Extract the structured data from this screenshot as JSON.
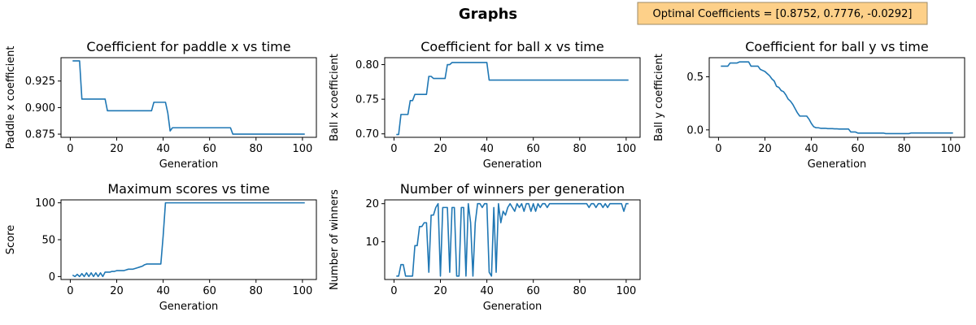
{
  "figure": {
    "title": "Graphs",
    "annotation": "Optimal Coefficients = [0.8752, 0.7776, -0.0292]",
    "annotation_bg": "#fdd089",
    "annotation_border": "#9c8a67",
    "line_color": "#1f77b4"
  },
  "chart_data": [
    {
      "type": "line",
      "title": "Coefficient for paddle x vs time",
      "xlabel": "Generation",
      "ylabel": "Paddle x coefficient",
      "xlim": [
        -4,
        106
      ],
      "ylim": [
        0.872,
        0.947
      ],
      "xticks": [
        0,
        20,
        40,
        60,
        80,
        100
      ],
      "xtick_labels": [
        "0",
        "20",
        "40",
        "60",
        "80",
        "100"
      ],
      "yticks": [
        0.875,
        0.9,
        0.925
      ],
      "ytick_labels": [
        "0.875",
        "0.900",
        "0.925"
      ],
      "x": [
        1,
        2,
        3,
        4,
        5,
        6,
        7,
        8,
        9,
        10,
        11,
        12,
        13,
        14,
        15,
        16,
        17,
        18,
        19,
        20,
        21,
        22,
        23,
        24,
        25,
        26,
        27,
        28,
        29,
        30,
        31,
        32,
        33,
        34,
        35,
        36,
        37,
        38,
        39,
        40,
        41,
        42,
        43,
        44,
        45,
        46,
        47,
        48,
        49,
        50,
        51,
        52,
        53,
        54,
        55,
        56,
        57,
        58,
        59,
        60,
        61,
        62,
        63,
        64,
        65,
        66,
        67,
        68,
        69,
        70,
        71,
        72,
        73,
        74,
        75,
        76,
        77,
        78,
        79,
        80,
        81,
        82,
        83,
        84,
        85,
        86,
        87,
        88,
        89,
        90,
        91,
        92,
        93,
        94,
        95,
        96,
        97,
        98,
        99,
        100,
        101
      ],
      "values": [
        0.944,
        0.944,
        0.944,
        0.944,
        0.908,
        0.908,
        0.908,
        0.908,
        0.908,
        0.908,
        0.908,
        0.908,
        0.908,
        0.908,
        0.908,
        0.897,
        0.897,
        0.897,
        0.897,
        0.897,
        0.897,
        0.897,
        0.897,
        0.897,
        0.897,
        0.897,
        0.897,
        0.897,
        0.897,
        0.897,
        0.897,
        0.897,
        0.897,
        0.897,
        0.897,
        0.905,
        0.905,
        0.905,
        0.905,
        0.905,
        0.905,
        0.895,
        0.878,
        0.881,
        0.881,
        0.881,
        0.881,
        0.881,
        0.881,
        0.881,
        0.881,
        0.881,
        0.881,
        0.881,
        0.881,
        0.881,
        0.881,
        0.881,
        0.881,
        0.881,
        0.881,
        0.881,
        0.881,
        0.881,
        0.881,
        0.881,
        0.881,
        0.881,
        0.881,
        0.875,
        0.875,
        0.875,
        0.875,
        0.875,
        0.875,
        0.875,
        0.875,
        0.875,
        0.875,
        0.875,
        0.875,
        0.875,
        0.875,
        0.875,
        0.875,
        0.875,
        0.875,
        0.875,
        0.875,
        0.875,
        0.875,
        0.875,
        0.875,
        0.875,
        0.875,
        0.875,
        0.875,
        0.875,
        0.875,
        0.875,
        0.875
      ]
    },
    {
      "type": "line",
      "title": "Coefficient for ball x vs time",
      "xlabel": "Generation",
      "ylabel": "Ball x coefficient",
      "xlim": [
        -4,
        106
      ],
      "ylim": [
        0.695,
        0.81
      ],
      "xticks": [
        0,
        20,
        40,
        60,
        80,
        100
      ],
      "xtick_labels": [
        "0",
        "20",
        "40",
        "60",
        "80",
        "100"
      ],
      "yticks": [
        0.7,
        0.75,
        0.8
      ],
      "ytick_labels": [
        "0.70",
        "0.75",
        "0.80"
      ],
      "x": [
        1,
        2,
        3,
        4,
        5,
        6,
        7,
        8,
        9,
        10,
        11,
        12,
        13,
        14,
        15,
        16,
        17,
        18,
        19,
        20,
        21,
        22,
        23,
        24,
        25,
        26,
        27,
        28,
        29,
        30,
        31,
        32,
        33,
        34,
        35,
        36,
        37,
        38,
        39,
        40,
        41,
        42,
        43,
        44,
        45,
        46,
        47,
        48,
        49,
        50,
        51,
        52,
        53,
        54,
        55,
        56,
        57,
        58,
        59,
        60,
        61,
        62,
        63,
        64,
        65,
        66,
        67,
        68,
        69,
        70,
        71,
        72,
        73,
        74,
        75,
        76,
        77,
        78,
        79,
        80,
        81,
        82,
        83,
        84,
        85,
        86,
        87,
        88,
        89,
        90,
        91,
        92,
        93,
        94,
        95,
        96,
        97,
        98,
        99,
        100,
        101
      ],
      "values": [
        0.699,
        0.699,
        0.728,
        0.728,
        0.728,
        0.728,
        0.748,
        0.748,
        0.757,
        0.757,
        0.757,
        0.757,
        0.757,
        0.757,
        0.783,
        0.783,
        0.78,
        0.78,
        0.78,
        0.78,
        0.78,
        0.78,
        0.8,
        0.8,
        0.803,
        0.803,
        0.803,
        0.803,
        0.803,
        0.803,
        0.803,
        0.803,
        0.803,
        0.803,
        0.803,
        0.803,
        0.803,
        0.803,
        0.803,
        0.803,
        0.7776,
        0.7776,
        0.7776,
        0.7776,
        0.7776,
        0.7776,
        0.7776,
        0.7776,
        0.7776,
        0.7776,
        0.7776,
        0.7776,
        0.7776,
        0.7776,
        0.7776,
        0.7776,
        0.7776,
        0.7776,
        0.7776,
        0.7776,
        0.7776,
        0.7776,
        0.7776,
        0.7776,
        0.7776,
        0.7776,
        0.7776,
        0.7776,
        0.7776,
        0.7776,
        0.7776,
        0.7776,
        0.7776,
        0.7776,
        0.7776,
        0.7776,
        0.7776,
        0.7776,
        0.7776,
        0.7776,
        0.7776,
        0.7776,
        0.7776,
        0.7776,
        0.7776,
        0.7776,
        0.7776,
        0.7776,
        0.7776,
        0.7776,
        0.7776,
        0.7776,
        0.7776,
        0.7776,
        0.7776,
        0.7776,
        0.7776,
        0.7776,
        0.7776,
        0.7776,
        0.7776
      ]
    },
    {
      "type": "line",
      "title": "Coefficient for ball y vs time",
      "xlabel": "Generation",
      "ylabel": "Ball y coefficient",
      "xlim": [
        -4,
        106
      ],
      "ylim": [
        -0.07,
        0.68
      ],
      "xticks": [
        0,
        20,
        40,
        60,
        80,
        100
      ],
      "xtick_labels": [
        "0",
        "20",
        "40",
        "60",
        "80",
        "100"
      ],
      "yticks": [
        0.0,
        0.5
      ],
      "ytick_labels": [
        "0.0",
        "0.5"
      ],
      "x": [
        1,
        2,
        3,
        4,
        5,
        6,
        7,
        8,
        9,
        10,
        11,
        12,
        13,
        14,
        15,
        16,
        17,
        18,
        19,
        20,
        21,
        22,
        23,
        24,
        25,
        26,
        27,
        28,
        29,
        30,
        31,
        32,
        33,
        34,
        35,
        36,
        37,
        38,
        39,
        40,
        41,
        42,
        43,
        44,
        45,
        46,
        47,
        48,
        49,
        50,
        51,
        52,
        53,
        54,
        55,
        56,
        57,
        58,
        59,
        60,
        61,
        62,
        63,
        64,
        65,
        66,
        67,
        68,
        69,
        70,
        71,
        72,
        73,
        74,
        75,
        76,
        77,
        78,
        79,
        80,
        81,
        82,
        83,
        84,
        85,
        86,
        87,
        88,
        89,
        90,
        91,
        92,
        93,
        94,
        95,
        96,
        97,
        98,
        99,
        100,
        101
      ],
      "values": [
        0.6,
        0.6,
        0.6,
        0.6,
        0.63,
        0.63,
        0.63,
        0.63,
        0.64,
        0.64,
        0.64,
        0.64,
        0.64,
        0.6,
        0.6,
        0.6,
        0.6,
        0.57,
        0.56,
        0.55,
        0.53,
        0.51,
        0.48,
        0.46,
        0.41,
        0.4,
        0.37,
        0.36,
        0.33,
        0.29,
        0.27,
        0.24,
        0.2,
        0.16,
        0.13,
        0.13,
        0.13,
        0.13,
        0.1,
        0.06,
        0.03,
        0.02,
        0.02,
        0.015,
        0.015,
        0.015,
        0.012,
        0.012,
        0.012,
        0.01,
        0.01,
        0.008,
        0.008,
        0.008,
        0.008,
        0.008,
        -0.02,
        -0.02,
        -0.02,
        -0.03,
        -0.03,
        -0.03,
        -0.03,
        -0.03,
        -0.03,
        -0.03,
        -0.03,
        -0.03,
        -0.03,
        -0.03,
        -0.03,
        -0.035,
        -0.035,
        -0.035,
        -0.035,
        -0.035,
        -0.035,
        -0.035,
        -0.035,
        -0.035,
        -0.035,
        -0.035,
        -0.029,
        -0.029,
        -0.029,
        -0.029,
        -0.029,
        -0.029,
        -0.029,
        -0.029,
        -0.029,
        -0.029,
        -0.029,
        -0.029,
        -0.029,
        -0.029,
        -0.029,
        -0.029,
        -0.029,
        -0.029,
        -0.0292
      ]
    },
    {
      "type": "line",
      "title": "Maximum scores vs time",
      "xlabel": "Generation",
      "ylabel": "Score",
      "xlim": [
        -4,
        106
      ],
      "ylim": [
        -4,
        104
      ],
      "xticks": [
        0,
        20,
        40,
        60,
        80,
        100
      ],
      "xtick_labels": [
        "0",
        "20",
        "40",
        "60",
        "80",
        "100"
      ],
      "yticks": [
        0,
        50,
        100
      ],
      "ytick_labels": [
        "0",
        "50",
        "100"
      ],
      "x": [
        1,
        2,
        3,
        4,
        5,
        6,
        7,
        8,
        9,
        10,
        11,
        12,
        13,
        14,
        15,
        16,
        17,
        18,
        19,
        20,
        21,
        22,
        23,
        24,
        25,
        26,
        27,
        28,
        29,
        30,
        31,
        32,
        33,
        34,
        35,
        36,
        37,
        38,
        39,
        40,
        41,
        42,
        43,
        44,
        45,
        46,
        47,
        48,
        49,
        50,
        51,
        52,
        53,
        54,
        55,
        56,
        57,
        58,
        59,
        60,
        61,
        62,
        63,
        64,
        65,
        66,
        67,
        68,
        69,
        70,
        71,
        72,
        73,
        74,
        75,
        76,
        77,
        78,
        79,
        80,
        81,
        82,
        83,
        84,
        85,
        86,
        87,
        88,
        89,
        90,
        91,
        92,
        93,
        94,
        95,
        96,
        97,
        98,
        99,
        100,
        101
      ],
      "values": [
        2,
        0,
        3,
        0,
        4,
        0,
        5,
        0,
        5,
        0,
        5,
        0,
        5,
        0,
        6,
        6,
        6,
        7,
        7,
        8,
        8,
        8,
        8,
        9,
        10,
        10,
        10,
        11,
        12,
        13,
        14,
        16,
        17,
        17,
        17,
        17,
        17,
        17,
        17,
        55,
        100,
        100,
        100,
        100,
        100,
        100,
        100,
        100,
        100,
        100,
        100,
        100,
        100,
        100,
        100,
        100,
        100,
        100,
        100,
        100,
        100,
        100,
        100,
        100,
        100,
        100,
        100,
        100,
        100,
        100,
        100,
        100,
        100,
        100,
        100,
        100,
        100,
        100,
        100,
        100,
        100,
        100,
        100,
        100,
        100,
        100,
        100,
        100,
        100,
        100,
        100,
        100,
        100,
        100,
        100,
        100,
        100,
        100,
        100,
        100,
        100
      ]
    },
    {
      "type": "line",
      "title": "Number of winners per generation",
      "xlabel": "Generation",
      "ylabel": "Number of winners",
      "xlim": [
        -4,
        106
      ],
      "ylim": [
        0.1,
        21
      ],
      "xticks": [
        0,
        20,
        40,
        60,
        80,
        100
      ],
      "xtick_labels": [
        "0",
        "20",
        "40",
        "60",
        "80",
        "100"
      ],
      "yticks": [
        10,
        20
      ],
      "ytick_labels": [
        "10",
        "20"
      ],
      "x": [
        1,
        2,
        3,
        4,
        5,
        6,
        7,
        8,
        9,
        10,
        11,
        12,
        13,
        14,
        15,
        16,
        17,
        18,
        19,
        20,
        21,
        22,
        23,
        24,
        25,
        26,
        27,
        28,
        29,
        30,
        31,
        32,
        33,
        34,
        35,
        36,
        37,
        38,
        39,
        40,
        41,
        42,
        43,
        44,
        45,
        46,
        47,
        48,
        49,
        50,
        51,
        52,
        53,
        54,
        55,
        56,
        57,
        58,
        59,
        60,
        61,
        62,
        63,
        64,
        65,
        66,
        67,
        68,
        69,
        70,
        71,
        72,
        73,
        74,
        75,
        76,
        77,
        78,
        79,
        80,
        81,
        82,
        83,
        84,
        85,
        86,
        87,
        88,
        89,
        90,
        91,
        92,
        93,
        94,
        95,
        96,
        97,
        98,
        99,
        100,
        101
      ],
      "values": [
        1,
        1,
        4,
        4,
        1,
        1,
        1,
        1,
        9,
        9,
        14,
        14,
        15,
        15,
        2,
        17,
        17,
        19,
        20,
        1,
        19,
        19,
        19,
        2,
        19,
        19,
        1,
        1,
        19,
        19,
        1,
        20,
        15,
        1,
        15,
        20,
        20,
        19,
        20,
        20,
        2,
        1,
        19,
        2,
        20,
        15,
        18,
        17,
        19,
        20,
        19,
        18,
        20,
        19,
        20,
        18,
        20,
        20,
        18,
        20,
        18,
        20,
        19,
        20,
        20,
        19,
        20,
        20,
        20,
        20,
        20,
        20,
        20,
        20,
        20,
        20,
        20,
        20,
        20,
        20,
        20,
        20,
        20,
        19,
        20,
        20,
        19,
        20,
        20,
        19,
        20,
        19,
        20,
        20,
        20,
        20,
        20,
        20,
        18,
        20,
        20
      ]
    }
  ]
}
